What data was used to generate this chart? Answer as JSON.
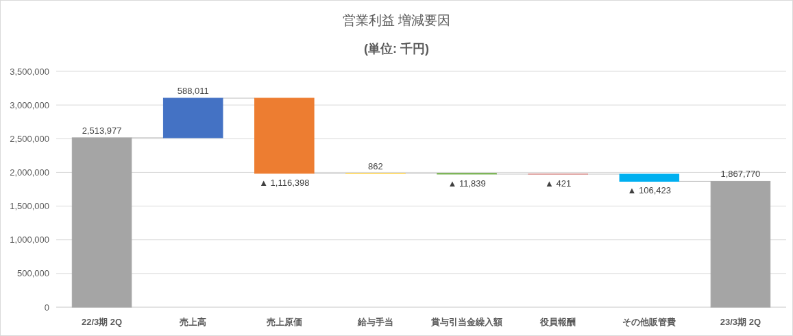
{
  "chart_data": {
    "type": "bar",
    "title": "営業利益 増減要因",
    "subtitle": "(単位: 千円)",
    "categories": [
      "22/3期 2Q",
      "売上高",
      "売上原価",
      "給与手当",
      "賞与引当金繰入額",
      "役員報酬",
      "その他販管費",
      "23/3期 2Q"
    ],
    "values": [
      2513977,
      588011,
      -1116398,
      862,
      -11839,
      -421,
      -106423,
      1867770
    ],
    "base": [
      0,
      2513977,
      3101988,
      1985590,
      1986452,
      1974613,
      1974192,
      0
    ],
    "colors": [
      "#a5a5a5",
      "#4472c4",
      "#ed7d31",
      "#ffc000",
      "#70ad47",
      "#c0504d",
      "#00b0f0",
      "#a5a5a5"
    ],
    "value_labels": [
      "2,513,977",
      "588,011",
      "▲ 1,116,398",
      "862",
      "▲ 11,839",
      "▲ 421",
      "▲ 106,423",
      "1,867,770"
    ],
    "ylim": [
      0,
      3500000
    ],
    "yticks": [
      0,
      {
        "value": 500000,
        "label": "500,000"
      },
      {
        "value": 1000000,
        "label": "1,000,000"
      },
      {
        "value": 1500000,
        "label": "1,500,000"
      },
      {
        "value": 2000000,
        "label": "2,000,000"
      },
      {
        "value": 2500000,
        "label": "2,500,000"
      },
      {
        "value": 3000000,
        "label": "3,000,000"
      },
      {
        "value": 3500000,
        "label": "3,500,000"
      }
    ],
    "grid": "y"
  }
}
